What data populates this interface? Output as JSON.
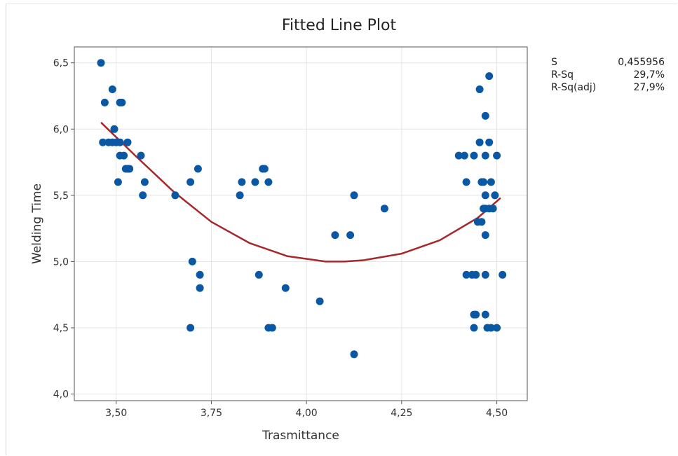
{
  "chart_data": {
    "type": "scatter",
    "title": "Fitted Line Plot",
    "xlabel": "Trasmittance",
    "ylabel": "Welding Time",
    "xlim": [
      3.39,
      4.58
    ],
    "ylim": [
      3.95,
      6.62
    ],
    "xticks": [
      3.5,
      3.75,
      4.0,
      4.25,
      4.5
    ],
    "yticks": [
      4.0,
      4.5,
      5.0,
      5.5,
      6.0,
      6.5
    ],
    "tick_labels": {
      "x": [
        "3,50",
        "3,75",
        "4,00",
        "4,25",
        "4,50"
      ],
      "y": [
        "4,0",
        "4,5",
        "5,0",
        "5,5",
        "6,0",
        "6,5"
      ]
    },
    "grid": true,
    "colors": {
      "points": "#0a57a4",
      "fit_line": "#a5282b",
      "grid": "#e4e4e4",
      "axis": "#555555"
    },
    "points": [
      [
        3.46,
        6.5
      ],
      [
        3.47,
        6.2
      ],
      [
        3.465,
        5.9
      ],
      [
        3.48,
        5.9
      ],
      [
        3.49,
        5.9
      ],
      [
        3.49,
        6.3
      ],
      [
        3.495,
        6.0
      ],
      [
        3.5,
        5.9
      ],
      [
        3.505,
        5.6
      ],
      [
        3.51,
        6.2
      ],
      [
        3.515,
        6.2
      ],
      [
        3.51,
        5.9
      ],
      [
        3.51,
        5.8
      ],
      [
        3.52,
        5.8
      ],
      [
        3.525,
        5.7
      ],
      [
        3.53,
        5.9
      ],
      [
        3.53,
        5.7
      ],
      [
        3.535,
        5.7
      ],
      [
        3.565,
        5.8
      ],
      [
        3.57,
        5.5
      ],
      [
        3.575,
        5.6
      ],
      [
        3.655,
        5.5
      ],
      [
        3.695,
        5.6
      ],
      [
        3.7,
        5.0
      ],
      [
        3.695,
        4.5
      ],
      [
        3.715,
        5.7
      ],
      [
        3.72,
        4.9
      ],
      [
        3.72,
        4.8
      ],
      [
        3.825,
        5.5
      ],
      [
        3.83,
        5.6
      ],
      [
        3.865,
        5.6
      ],
      [
        3.875,
        4.9
      ],
      [
        3.885,
        5.7
      ],
      [
        3.89,
        5.7
      ],
      [
        3.9,
        5.6
      ],
      [
        3.9,
        4.5
      ],
      [
        3.91,
        4.5
      ],
      [
        3.945,
        4.8
      ],
      [
        4.035,
        4.7
      ],
      [
        4.075,
        5.2
      ],
      [
        4.115,
        5.2
      ],
      [
        4.125,
        5.5
      ],
      [
        4.125,
        4.3
      ],
      [
        4.205,
        5.4
      ],
      [
        4.4,
        5.8
      ],
      [
        4.415,
        5.8
      ],
      [
        4.42,
        5.6
      ],
      [
        4.42,
        4.9
      ],
      [
        4.435,
        4.9
      ],
      [
        4.44,
        5.8
      ],
      [
        4.44,
        4.6
      ],
      [
        4.44,
        4.5
      ],
      [
        4.445,
        4.9
      ],
      [
        4.445,
        4.6
      ],
      [
        4.45,
        5.3
      ],
      [
        4.455,
        6.3
      ],
      [
        4.455,
        5.9
      ],
      [
        4.46,
        5.6
      ],
      [
        4.46,
        5.3
      ],
      [
        4.465,
        5.4
      ],
      [
        4.465,
        5.6
      ],
      [
        4.47,
        6.1
      ],
      [
        4.47,
        5.8
      ],
      [
        4.47,
        5.5
      ],
      [
        4.47,
        5.4
      ],
      [
        4.47,
        5.2
      ],
      [
        4.47,
        4.9
      ],
      [
        4.47,
        4.6
      ],
      [
        4.475,
        4.5
      ],
      [
        4.48,
        6.4
      ],
      [
        4.48,
        5.9
      ],
      [
        4.48,
        5.4
      ],
      [
        4.485,
        5.6
      ],
      [
        4.485,
        4.5
      ],
      [
        4.49,
        5.4
      ],
      [
        4.495,
        5.5
      ],
      [
        4.5,
        5.8
      ],
      [
        4.5,
        4.5
      ],
      [
        4.515,
        4.9
      ]
    ],
    "fit_line": {
      "x": [
        3.46,
        3.55,
        3.65,
        3.75,
        3.85,
        3.95,
        4.05,
        4.1,
        4.15,
        4.25,
        4.35,
        4.45,
        4.51
      ],
      "y": [
        6.05,
        5.8,
        5.53,
        5.3,
        5.14,
        5.04,
        5.0,
        5.0,
        5.01,
        5.06,
        5.16,
        5.33,
        5.48
      ]
    }
  },
  "stats": [
    {
      "label": "S",
      "value": "0,455956"
    },
    {
      "label": "R-Sq",
      "value": "29,7%"
    },
    {
      "label": "R-Sq(adj)",
      "value": "27,9%"
    }
  ]
}
